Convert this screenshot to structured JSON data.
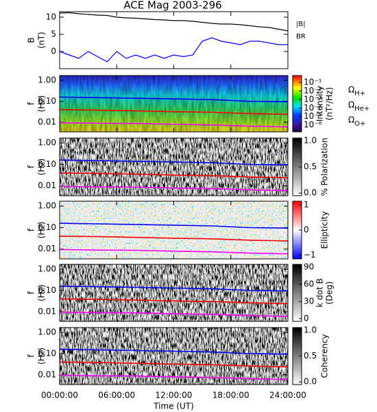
{
  "chart_data": [
    {
      "type": "line",
      "title": "ACE Mag 2003-296",
      "ylabel": [
        "B",
        "(nT)"
      ],
      "legend": true,
      "xlim": [
        0,
        24
      ],
      "ylim": [
        -5,
        11.6
      ],
      "yticks": [
        10,
        5,
        0
      ],
      "log_y": false,
      "x": [
        0,
        1,
        2,
        3,
        4,
        5,
        6,
        7,
        8,
        9,
        10,
        11,
        12,
        13,
        14,
        15,
        16,
        17,
        18,
        19,
        20,
        21,
        22,
        23,
        24
      ],
      "series": [
        {
          "name": "|B|",
          "color": "#000000",
          "values": [
            11.2,
            11.3,
            11,
            10.8,
            10.6,
            10.5,
            10,
            9.8,
            9.7,
            9.5,
            9.3,
            9.2,
            9.0,
            9.0,
            8.8,
            8.5,
            8.2,
            8.0,
            8.0,
            7.8,
            7.5,
            7.2,
            7.0,
            6.5,
            6.0
          ]
        },
        {
          "name": "BR",
          "color": "#0000ff",
          "values": [
            0,
            -1,
            -2,
            0,
            -1.5,
            -3,
            0,
            -2,
            -1,
            -2,
            -1,
            -2,
            -1,
            -1.5,
            -1,
            3,
            4,
            3,
            2.5,
            2,
            3,
            3,
            2.5,
            2,
            2
          ]
        }
      ]
    },
    {
      "type": "spectrogram",
      "colormap": "jet",
      "ylabel": [
        "f",
        "(Hz)"
      ],
      "legend": true,
      "log_y": true,
      "xlim": [
        0,
        24
      ],
      "ylim": [
        0.0035,
        1.7
      ],
      "yticks": [
        {
          "value": 1,
          "label": "1.00"
        },
        {
          "value": 0.1,
          "label": "0.10"
        },
        0.01
      ],
      "x": [
        0,
        4,
        8,
        12,
        16,
        20,
        24
      ],
      "series": [
        {
          "name": "ΩH+",
          "color": "#0000ff",
          "values": [
            0.16,
            0.15,
            0.14,
            0.13,
            0.12,
            0.1,
            0.095
          ]
        },
        {
          "name": "ΩHe+",
          "color": "#ff0000",
          "values": [
            0.04,
            0.038,
            0.035,
            0.032,
            0.03,
            0.026,
            0.024
          ]
        },
        {
          "name": "ΩO+",
          "color": "#ff00ff",
          "values": [
            0.0095,
            0.009,
            0.0088,
            0.008,
            0.0075,
            0.0065,
            0.006
          ]
        }
      ],
      "colorbar": {
        "label": [
          "Intensity",
          "(nT²/Hz)"
        ],
        "log": true,
        "lim": [
          1.6e-07,
          0.65
        ],
        "ticks": [
          {
            "value": 0.1,
            "label": "10⁻¹"
          },
          {
            "value": 0.01,
            "label": "10⁻²"
          },
          {
            "value": 0.001,
            "label": "10⁻³"
          },
          {
            "value": 0.0001,
            "label": "10⁻⁴"
          },
          {
            "value": 1e-05,
            "label": "10⁻⁵"
          },
          {
            "value": 1e-06,
            "label": "10⁻⁶"
          }
        ]
      }
    },
    {
      "type": "spectrogram",
      "colormap": "gray",
      "ylabel": [
        "f",
        "(Hz)"
      ],
      "log_y": true,
      "xlim": [
        0,
        24
      ],
      "ylim": [
        0.0035,
        1.7
      ],
      "yticks": [
        {
          "value": 1,
          "label": "1.00"
        },
        {
          "value": 0.1,
          "label": "0.10"
        },
        0.01
      ],
      "x": [
        0,
        4,
        8,
        12,
        16,
        20,
        24
      ],
      "series": [
        {
          "color": "#0000ff",
          "values": [
            0.16,
            0.15,
            0.14,
            0.13,
            0.12,
            0.1,
            0.095
          ]
        },
        {
          "color": "#ff0000",
          "values": [
            0.04,
            0.038,
            0.035,
            0.032,
            0.03,
            0.026,
            0.024
          ]
        },
        {
          "color": "#ff00ff",
          "values": [
            0.0095,
            0.009,
            0.0088,
            0.008,
            0.0075,
            0.0065,
            0.006
          ]
        }
      ],
      "colorbar": {
        "label": [
          "% Polarization"
        ],
        "log": false,
        "lim": [
          -0.05,
          1.05
        ],
        "ticks": [
          {
            "value": 1,
            "label": "1.0"
          },
          0.5,
          {
            "value": 0,
            "label": "0.0"
          }
        ]
      }
    },
    {
      "type": "spectrogram",
      "colormap": "bwr",
      "ylabel": [
        "f",
        "(Hz)"
      ],
      "log_y": true,
      "xlim": [
        0,
        24
      ],
      "ylim": [
        0.0035,
        1.7
      ],
      "yticks": [
        {
          "value": 1,
          "label": "1.00"
        },
        {
          "value": 0.1,
          "label": "0.10"
        },
        0.01
      ],
      "x": [
        0,
        4,
        8,
        12,
        16,
        20,
        24
      ],
      "series": [
        {
          "color": "#0000ff",
          "values": [
            0.16,
            0.15,
            0.14,
            0.13,
            0.12,
            0.1,
            0.095
          ]
        },
        {
          "color": "#ff0000",
          "values": [
            0.04,
            0.038,
            0.035,
            0.032,
            0.03,
            0.026,
            0.024
          ]
        },
        {
          "color": "#ff00ff",
          "values": [
            0.0095,
            0.009,
            0.0088,
            0.008,
            0.0075,
            0.0065,
            0.006
          ]
        }
      ],
      "colorbar": {
        "label": [
          "Ellipticity"
        ],
        "log": false,
        "lim": [
          -1.15,
          1.15
        ],
        "ticks": [
          1,
          0,
          {
            "value": -1,
            "label": "−1"
          }
        ]
      }
    },
    {
      "type": "spectrogram",
      "colormap": "gray",
      "ylabel": [
        "f",
        "(Hz)"
      ],
      "log_y": true,
      "xlim": [
        0,
        24
      ],
      "ylim": [
        0.0035,
        1.7
      ],
      "yticks": [
        {
          "value": 1,
          "label": "1.00"
        },
        {
          "value": 0.1,
          "label": "0.10"
        },
        0.01
      ],
      "x": [
        0,
        4,
        8,
        12,
        16,
        20,
        24
      ],
      "series": [
        {
          "color": "#0000ff",
          "values": [
            0.16,
            0.15,
            0.14,
            0.13,
            0.12,
            0.1,
            0.095
          ]
        },
        {
          "color": "#ff0000",
          "values": [
            0.04,
            0.038,
            0.035,
            0.032,
            0.03,
            0.026,
            0.024
          ]
        },
        {
          "color": "#ff00ff",
          "values": [
            0.0095,
            0.009,
            0.0088,
            0.008,
            0.0075,
            0.0065,
            0.006
          ]
        }
      ],
      "colorbar": {
        "label": [
          "k dot B",
          "(Deg)"
        ],
        "log": false,
        "lim": [
          -5,
          95
        ],
        "ticks": [
          90,
          60,
          30,
          0
        ]
      }
    },
    {
      "type": "spectrogram",
      "colormap": "gray",
      "ylabel": [
        "f",
        "(Hz)"
      ],
      "log_y": true,
      "xlim": [
        0,
        24
      ],
      "ylim": [
        0.0035,
        1.7
      ],
      "yticks": [
        {
          "value": 1,
          "label": "1.00"
        },
        {
          "value": 0.1,
          "label": "0.10"
        },
        0.01
      ],
      "x": [
        0,
        4,
        8,
        12,
        16,
        20,
        24
      ],
      "series": [
        {
          "color": "#0000ff",
          "values": [
            0.16,
            0.15,
            0.14,
            0.13,
            0.12,
            0.1,
            0.095
          ]
        },
        {
          "color": "#ff0000",
          "values": [
            0.04,
            0.038,
            0.035,
            0.032,
            0.03,
            0.026,
            0.024
          ]
        },
        {
          "color": "#ff00ff",
          "values": [
            0.0095,
            0.009,
            0.0088,
            0.008,
            0.0075,
            0.0065,
            0.006
          ]
        }
      ],
      "colorbar": {
        "label": [
          "Coherency"
        ],
        "log": false,
        "lim": [
          -0.05,
          1.05
        ],
        "ticks": [
          {
            "value": 1,
            "label": "1.0"
          },
          0.5,
          {
            "value": 0,
            "label": "0.0"
          }
        ]
      },
      "xlabel": "Time (UT)",
      "xticks": [
        {
          "value": 0,
          "label": "00:00:00"
        },
        {
          "value": 6,
          "label": "06:00:00"
        },
        {
          "value": 12,
          "label": "12:00:00"
        },
        {
          "value": 18,
          "label": "18:00:00"
        },
        {
          "value": 24,
          "label": "24:00:00"
        }
      ]
    }
  ]
}
